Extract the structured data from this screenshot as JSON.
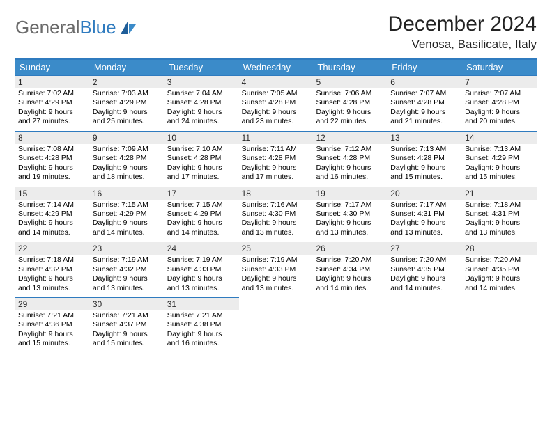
{
  "logo": {
    "part1": "General",
    "part2": "Blue"
  },
  "title": "December 2024",
  "location": "Venosa, Basilicate, Italy",
  "colors": {
    "header_bg": "#3b8bc9",
    "header_text": "#ffffff",
    "accent_line": "#2f7bbf",
    "daynum_bg": "#ececec",
    "logo_gray": "#6b6b6b",
    "logo_blue": "#2f7bbf",
    "body_text": "#000000",
    "page_bg": "#ffffff"
  },
  "dayNames": [
    "Sunday",
    "Monday",
    "Tuesday",
    "Wednesday",
    "Thursday",
    "Friday",
    "Saturday"
  ],
  "weeks": [
    [
      {
        "n": "1",
        "sr": "Sunrise: 7:02 AM",
        "ss": "Sunset: 4:29 PM",
        "d1": "Daylight: 9 hours",
        "d2": "and 27 minutes."
      },
      {
        "n": "2",
        "sr": "Sunrise: 7:03 AM",
        "ss": "Sunset: 4:29 PM",
        "d1": "Daylight: 9 hours",
        "d2": "and 25 minutes."
      },
      {
        "n": "3",
        "sr": "Sunrise: 7:04 AM",
        "ss": "Sunset: 4:28 PM",
        "d1": "Daylight: 9 hours",
        "d2": "and 24 minutes."
      },
      {
        "n": "4",
        "sr": "Sunrise: 7:05 AM",
        "ss": "Sunset: 4:28 PM",
        "d1": "Daylight: 9 hours",
        "d2": "and 23 minutes."
      },
      {
        "n": "5",
        "sr": "Sunrise: 7:06 AM",
        "ss": "Sunset: 4:28 PM",
        "d1": "Daylight: 9 hours",
        "d2": "and 22 minutes."
      },
      {
        "n": "6",
        "sr": "Sunrise: 7:07 AM",
        "ss": "Sunset: 4:28 PM",
        "d1": "Daylight: 9 hours",
        "d2": "and 21 minutes."
      },
      {
        "n": "7",
        "sr": "Sunrise: 7:07 AM",
        "ss": "Sunset: 4:28 PM",
        "d1": "Daylight: 9 hours",
        "d2": "and 20 minutes."
      }
    ],
    [
      {
        "n": "8",
        "sr": "Sunrise: 7:08 AM",
        "ss": "Sunset: 4:28 PM",
        "d1": "Daylight: 9 hours",
        "d2": "and 19 minutes."
      },
      {
        "n": "9",
        "sr": "Sunrise: 7:09 AM",
        "ss": "Sunset: 4:28 PM",
        "d1": "Daylight: 9 hours",
        "d2": "and 18 minutes."
      },
      {
        "n": "10",
        "sr": "Sunrise: 7:10 AM",
        "ss": "Sunset: 4:28 PM",
        "d1": "Daylight: 9 hours",
        "d2": "and 17 minutes."
      },
      {
        "n": "11",
        "sr": "Sunrise: 7:11 AM",
        "ss": "Sunset: 4:28 PM",
        "d1": "Daylight: 9 hours",
        "d2": "and 17 minutes."
      },
      {
        "n": "12",
        "sr": "Sunrise: 7:12 AM",
        "ss": "Sunset: 4:28 PM",
        "d1": "Daylight: 9 hours",
        "d2": "and 16 minutes."
      },
      {
        "n": "13",
        "sr": "Sunrise: 7:13 AM",
        "ss": "Sunset: 4:28 PM",
        "d1": "Daylight: 9 hours",
        "d2": "and 15 minutes."
      },
      {
        "n": "14",
        "sr": "Sunrise: 7:13 AM",
        "ss": "Sunset: 4:29 PM",
        "d1": "Daylight: 9 hours",
        "d2": "and 15 minutes."
      }
    ],
    [
      {
        "n": "15",
        "sr": "Sunrise: 7:14 AM",
        "ss": "Sunset: 4:29 PM",
        "d1": "Daylight: 9 hours",
        "d2": "and 14 minutes."
      },
      {
        "n": "16",
        "sr": "Sunrise: 7:15 AM",
        "ss": "Sunset: 4:29 PM",
        "d1": "Daylight: 9 hours",
        "d2": "and 14 minutes."
      },
      {
        "n": "17",
        "sr": "Sunrise: 7:15 AM",
        "ss": "Sunset: 4:29 PM",
        "d1": "Daylight: 9 hours",
        "d2": "and 14 minutes."
      },
      {
        "n": "18",
        "sr": "Sunrise: 7:16 AM",
        "ss": "Sunset: 4:30 PM",
        "d1": "Daylight: 9 hours",
        "d2": "and 13 minutes."
      },
      {
        "n": "19",
        "sr": "Sunrise: 7:17 AM",
        "ss": "Sunset: 4:30 PM",
        "d1": "Daylight: 9 hours",
        "d2": "and 13 minutes."
      },
      {
        "n": "20",
        "sr": "Sunrise: 7:17 AM",
        "ss": "Sunset: 4:31 PM",
        "d1": "Daylight: 9 hours",
        "d2": "and 13 minutes."
      },
      {
        "n": "21",
        "sr": "Sunrise: 7:18 AM",
        "ss": "Sunset: 4:31 PM",
        "d1": "Daylight: 9 hours",
        "d2": "and 13 minutes."
      }
    ],
    [
      {
        "n": "22",
        "sr": "Sunrise: 7:18 AM",
        "ss": "Sunset: 4:32 PM",
        "d1": "Daylight: 9 hours",
        "d2": "and 13 minutes."
      },
      {
        "n": "23",
        "sr": "Sunrise: 7:19 AM",
        "ss": "Sunset: 4:32 PM",
        "d1": "Daylight: 9 hours",
        "d2": "and 13 minutes."
      },
      {
        "n": "24",
        "sr": "Sunrise: 7:19 AM",
        "ss": "Sunset: 4:33 PM",
        "d1": "Daylight: 9 hours",
        "d2": "and 13 minutes."
      },
      {
        "n": "25",
        "sr": "Sunrise: 7:19 AM",
        "ss": "Sunset: 4:33 PM",
        "d1": "Daylight: 9 hours",
        "d2": "and 13 minutes."
      },
      {
        "n": "26",
        "sr": "Sunrise: 7:20 AM",
        "ss": "Sunset: 4:34 PM",
        "d1": "Daylight: 9 hours",
        "d2": "and 14 minutes."
      },
      {
        "n": "27",
        "sr": "Sunrise: 7:20 AM",
        "ss": "Sunset: 4:35 PM",
        "d1": "Daylight: 9 hours",
        "d2": "and 14 minutes."
      },
      {
        "n": "28",
        "sr": "Sunrise: 7:20 AM",
        "ss": "Sunset: 4:35 PM",
        "d1": "Daylight: 9 hours",
        "d2": "and 14 minutes."
      }
    ],
    [
      {
        "n": "29",
        "sr": "Sunrise: 7:21 AM",
        "ss": "Sunset: 4:36 PM",
        "d1": "Daylight: 9 hours",
        "d2": "and 15 minutes."
      },
      {
        "n": "30",
        "sr": "Sunrise: 7:21 AM",
        "ss": "Sunset: 4:37 PM",
        "d1": "Daylight: 9 hours",
        "d2": "and 15 minutes."
      },
      {
        "n": "31",
        "sr": "Sunrise: 7:21 AM",
        "ss": "Sunset: 4:38 PM",
        "d1": "Daylight: 9 hours",
        "d2": "and 16 minutes."
      },
      null,
      null,
      null,
      null
    ]
  ]
}
